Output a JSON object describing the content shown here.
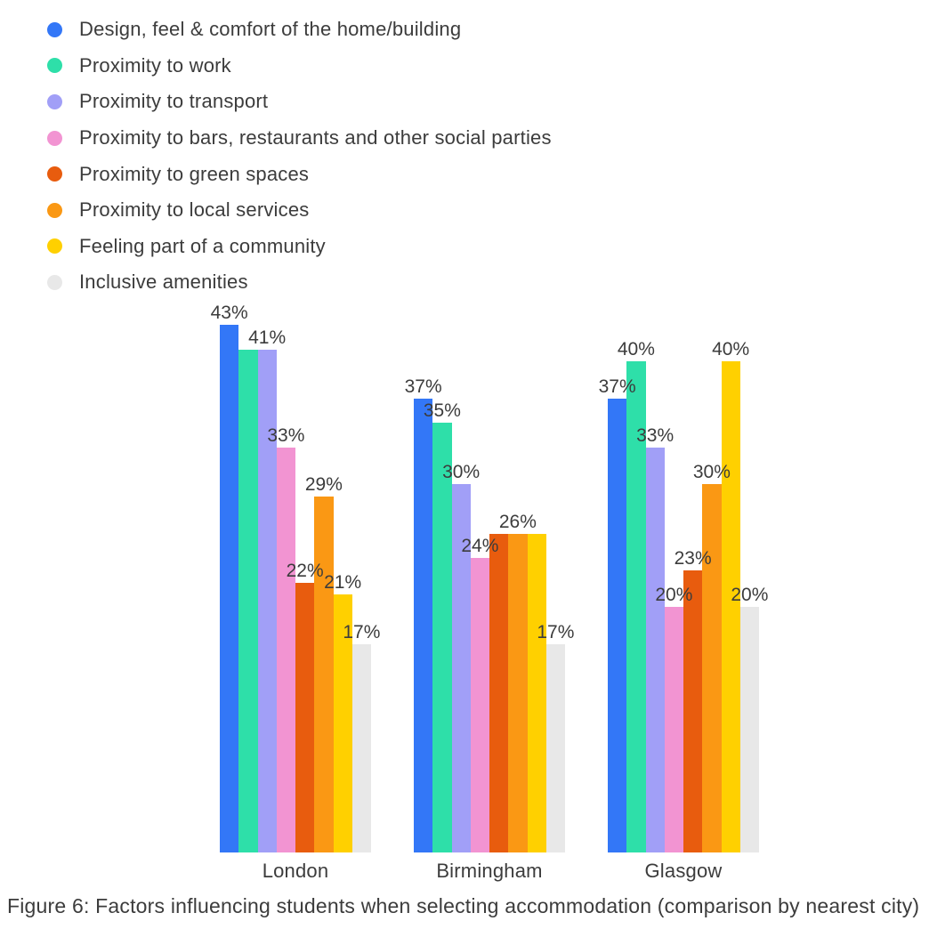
{
  "text_color": "#3c3c3c",
  "background_color": "#ffffff",
  "chart_data": {
    "type": "bar",
    "title": "",
    "caption": "Figure 6: Factors influencing students when selecting accommodation (comparison by nearest city)",
    "categories": [
      "London",
      "Birmingham",
      "Glasgow"
    ],
    "unit": "%",
    "ylim": [
      0,
      45
    ],
    "grid": false,
    "axes_visible": false,
    "legend_position": "top-left",
    "series": [
      {
        "name": "Design, feel & comfort of the home/building",
        "color": "#3377F7",
        "values": [
          43,
          37,
          37
        ],
        "labels": [
          "43%",
          "37%",
          "37%"
        ]
      },
      {
        "name": "Proximity to work",
        "color": "#2EDFA9",
        "values": [
          41,
          35,
          40
        ],
        "labels": [
          null,
          "35%",
          "40%"
        ]
      },
      {
        "name": "Proximity to transport",
        "color": "#A19FF7",
        "values": [
          41,
          30,
          33
        ],
        "labels": [
          "41%",
          "30%",
          "33%"
        ]
      },
      {
        "name": "Proximity to bars, restaurants and other social parties",
        "color": "#F294D2",
        "values": [
          33,
          24,
          20
        ],
        "labels": [
          "33%",
          "24%",
          "20%"
        ]
      },
      {
        "name": "Proximity to green spaces",
        "color": "#E85C0E",
        "values": [
          22,
          26,
          23
        ],
        "labels": [
          "22%",
          null,
          "23%"
        ]
      },
      {
        "name": "Proximity to local services",
        "color": "#FA9814",
        "values": [
          29,
          26,
          30
        ],
        "labels": [
          "29%",
          "26%",
          "30%"
        ]
      },
      {
        "name": "Feeling part of a community",
        "color": "#FFD000",
        "values": [
          21,
          26,
          40
        ],
        "labels": [
          "21%",
          null,
          "40%"
        ]
      },
      {
        "name": "Inclusive amenities",
        "color": "#E8E8E8",
        "values": [
          17,
          17,
          20
        ],
        "labels": [
          "17%",
          "17%",
          "20%"
        ]
      }
    ]
  }
}
